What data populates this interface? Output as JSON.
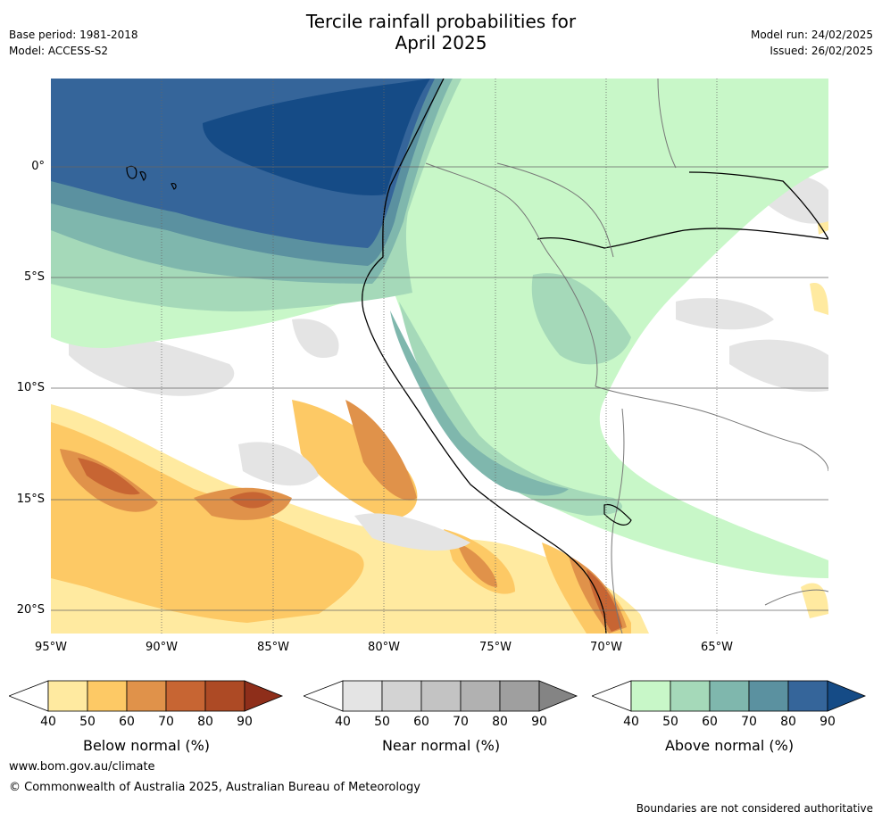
{
  "header": {
    "title_line1": "Tercile rainfall probabilities for",
    "title_line2": "April 2025",
    "base_period": "Base period: 1981-2018",
    "model": "Model: ACCESS-S2",
    "model_run": "Model run: 24/02/2025",
    "issued": "Issued: 26/02/2025"
  },
  "map": {
    "lon_labels": [
      "95°W",
      "90°W",
      "85°W",
      "80°W",
      "75°W",
      "70°W",
      "65°W"
    ],
    "lat_labels": [
      "0°",
      "5°S",
      "10°S",
      "15°S",
      "20°S"
    ],
    "extent": {
      "lon_min": -95,
      "lon_max": -60,
      "lat_min": -21,
      "lat_max": 4
    },
    "regions": {
      "below_normal": "South-east Pacific off Peru and north of Chile, strongest near 70°W 19°S and 93°W 14°S",
      "near_normal": "Scattered patches over the central Pacific and Amazon",
      "above_normal": "Equatorial Pacific near Ecuador and Galápagos (up to 90%), coastal Peru, and western Amazon"
    }
  },
  "colorbars": [
    {
      "name": "below",
      "label": "Below normal (%)",
      "ticks": [
        "40",
        "50",
        "60",
        "70",
        "80",
        "90"
      ],
      "colors": [
        "#ffffff",
        "#ffeaa0",
        "#fdc965",
        "#e0924a",
        "#c76533",
        "#ad4a25",
        "#8e2e1a"
      ]
    },
    {
      "name": "near",
      "label": "Near normal (%)",
      "ticks": [
        "40",
        "50",
        "60",
        "70",
        "80",
        "90"
      ],
      "colors": [
        "#ffffff",
        "#e4e4e4",
        "#d3d3d3",
        "#c3c3c3",
        "#b1b1b1",
        "#9f9f9f",
        "#848484"
      ]
    },
    {
      "name": "above",
      "label": "Above normal (%)",
      "ticks": [
        "40",
        "50",
        "60",
        "70",
        "80",
        "90"
      ],
      "colors": [
        "#ffffff",
        "#c8f7c8",
        "#a5d9b9",
        "#7fb7ad",
        "#5b91a0",
        "#35659a",
        "#154b86"
      ]
    }
  ],
  "footer": {
    "url": "www.bom.gov.au/climate",
    "copyright": "© Commonwealth of Australia 2025, Australian Bureau of Meteorology",
    "note": "Boundaries are not considered authoritative"
  }
}
